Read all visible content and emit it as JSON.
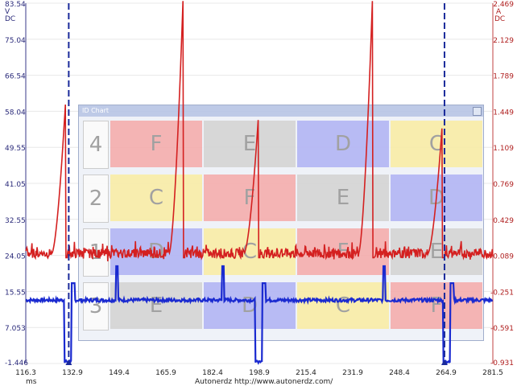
{
  "chart_data": {
    "type": "line",
    "y_left": {
      "unit": "V",
      "mode": "DC",
      "ticks": [
        "83.54",
        "75.04",
        "66.54",
        "58.04",
        "49.55",
        "41.05",
        "32.55",
        "24.05",
        "15.55",
        "7.053",
        "-1.446"
      ],
      "range": [
        -1.446,
        83.54
      ]
    },
    "y_right": {
      "unit": "A",
      "mode": "DC",
      "ticks": [
        "2.469",
        "2.129",
        "1.789",
        "1.449",
        "1.109",
        "0.769",
        "0.429",
        "0.089",
        "-0.251",
        "-0.591",
        "-0.931"
      ],
      "range": [
        -0.931,
        2.469
      ]
    },
    "x": {
      "unit": "ms",
      "ticks": [
        "116.3",
        "132.9",
        "149.4",
        "165.9",
        "182.4",
        "198.9",
        "215.4",
        "231.9",
        "248.4",
        "264.9",
        "281.5"
      ],
      "range": [
        116.3,
        281.5
      ]
    },
    "series": [
      {
        "color": "#d42020",
        "axis": "left",
        "baseline": 24.5,
        "noise": 1.1,
        "spike_times": [
          130.5,
          172.0,
          198.5,
          239.0,
          263.5
        ],
        "spike_peaks": [
          62,
          86,
          56,
          86,
          54
        ]
      },
      {
        "color": "#1a2ad0",
        "axis": "left",
        "baseline": 13.5,
        "drop_level": -1.0,
        "noise": 0.4,
        "pulse_times": [
          130.0,
          197.5,
          264.0
        ],
        "pulse_width": 2.5
      }
    ],
    "markers": [
      {
        "x": 131.5,
        "color": "#1a2a9a",
        "style": "dashed"
      },
      {
        "x": 264.4,
        "color": "#1a2a9a",
        "style": "dashed"
      }
    ],
    "watermark": "Autonerdz  http://www.autonerdz.com/"
  },
  "id_chart": {
    "title": "ID Chart",
    "rows": [
      {
        "num": "4",
        "cells": [
          {
            "letter": "F",
            "color": "#f4aeae"
          },
          {
            "letter": "E",
            "color": "#d4d4d4"
          },
          {
            "letter": "D",
            "color": "#b3b6f4"
          },
          {
            "letter": "C",
            "color": "#f8eca8"
          }
        ]
      },
      {
        "num": "2",
        "cells": [
          {
            "letter": "C",
            "color": "#f8eca8"
          },
          {
            "letter": "F",
            "color": "#f4aeae"
          },
          {
            "letter": "E",
            "color": "#d4d4d4"
          },
          {
            "letter": "D",
            "color": "#b3b6f4"
          }
        ]
      },
      {
        "num": "1",
        "cells": [
          {
            "letter": "D",
            "color": "#b3b6f4"
          },
          {
            "letter": "C",
            "color": "#f8eca8"
          },
          {
            "letter": "F",
            "color": "#f4aeae"
          },
          {
            "letter": "E",
            "color": "#d4d4d4"
          }
        ]
      },
      {
        "num": "3",
        "cells": [
          {
            "letter": "E",
            "color": "#d4d4d4"
          },
          {
            "letter": "D",
            "color": "#b3b6f4"
          },
          {
            "letter": "C",
            "color": "#f8eca8"
          },
          {
            "letter": "F",
            "color": "#f4aeae"
          }
        ]
      }
    ]
  }
}
